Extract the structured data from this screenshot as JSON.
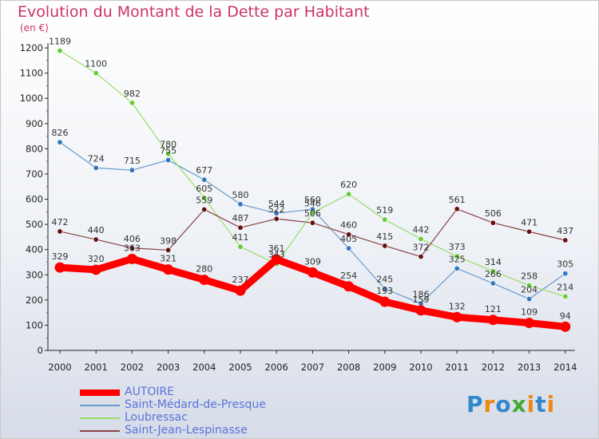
{
  "chart_data": {
    "type": "line",
    "title": "Evolution du Montant de la Dette par Habitant",
    "subtitle": "(en €)",
    "xlabel": "",
    "ylabel": "",
    "x": [
      "2000",
      "2001",
      "2002",
      "2003",
      "2004",
      "2005",
      "2006",
      "2007",
      "2008",
      "2009",
      "2010",
      "2011",
      "2012",
      "2013",
      "2014"
    ],
    "ylim": [
      0,
      1200
    ],
    "yticks": [
      "0",
      "100",
      "200",
      "300",
      "400",
      "500",
      "600",
      "700",
      "800",
      "900",
      "1000",
      "1100",
      "1200"
    ],
    "grid": false,
    "legend": "bottom-left",
    "series": [
      {
        "name": "AUTOIRE",
        "color": "#ff0000",
        "values": [
          329,
          320,
          363,
          321,
          280,
          237,
          361,
          309,
          254,
          193,
          159,
          132,
          121,
          109,
          94
        ],
        "labels": [
          "329",
          "320",
          "363",
          "321",
          "280",
          "237",
          "361",
          "309",
          "254",
          "193",
          "159",
          "132",
          "121",
          "109",
          "94"
        ]
      },
      {
        "name": "Saint-Médard-de-Presque",
        "color": "#6699cc",
        "marker": "#3377bb",
        "values": [
          826,
          724,
          715,
          755,
          677,
          580,
          544,
          560,
          405,
          245,
          186,
          325,
          266,
          204,
          305
        ],
        "labels": [
          "826",
          "724",
          "715",
          "755",
          "677",
          "580",
          "544",
          "560",
          "405",
          "245",
          "186",
          "325",
          "266",
          "204",
          "305"
        ]
      },
      {
        "name": "Loubressac",
        "color": "#99dd66",
        "marker": "#66cc33",
        "values": [
          1189,
          1100,
          982,
          780,
          605,
          411,
          343,
          546,
          620,
          519,
          442,
          373,
          314,
          258,
          214
        ],
        "labels": [
          "1189",
          "1100",
          "982",
          "780",
          "605",
          "411",
          "343",
          "546",
          "620",
          "519",
          "442",
          "373",
          "314",
          "258",
          "214"
        ]
      },
      {
        "name": "Saint-Jean-Lespinasse",
        "color": "#884444",
        "marker": "#661111",
        "values": [
          472,
          440,
          406,
          398,
          559,
          487,
          522,
          506,
          460,
          415,
          372,
          561,
          506,
          471,
          437
        ],
        "labels": [
          "472",
          "440",
          "406",
          "398",
          "559",
          "487",
          "522",
          "506",
          "460",
          "415",
          "372",
          "561",
          "506",
          "471",
          "437"
        ]
      }
    ]
  },
  "logo": {
    "text": "Proxiti",
    "colors": [
      "#3388cc",
      "#ee8811",
      "#3388cc",
      "#44aa33",
      "#ee8811",
      "#3388cc",
      "#ee8811"
    ]
  }
}
